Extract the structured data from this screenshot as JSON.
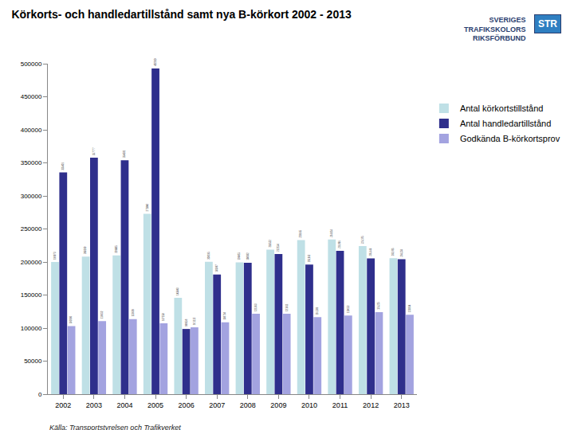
{
  "chart_data": {
    "type": "bar",
    "title": "Körkorts- och handledartillstånd samt nya B-körkort 2002 - 2013",
    "source": "Källa: Transportstyrelsen och Trafikverket",
    "logo": [
      "SVERIGES",
      "TRAFIKSKOLORS",
      "RIKSFÖRBUND",
      "STR"
    ],
    "categories": [
      "2002",
      "2003",
      "2004",
      "2005",
      "2006",
      "2007",
      "2008",
      "2009",
      "2010",
      "2011",
      "2012",
      "2013"
    ],
    "series": [
      {
        "name": "Antal körkortstillstånd",
        "color": "#bfe0e6",
        "values": [
          199973,
          208269,
          209885,
          272848,
          145843,
          200195,
          199415,
          218552,
          233045,
          234054,
          224175,
          205785
        ],
        "value_labels": [
          "199973",
          "208269",
          "209885",
          "272848",
          "145843",
          "200195",
          "199415",
          "218552",
          "233,045",
          "234,054",
          "224,175",
          "205,785"
        ]
      },
      {
        "name": "Antal handledartillstånd",
        "color": "#2f2f8c",
        "values": [
          335401,
          357777,
          354031,
          492919,
          98658,
          181067,
          198932,
          212154,
          195963,
          216996,
          205446,
          204234
        ],
        "value_labels": [
          "335401",
          "357777",
          "354031",
          "492919",
          "98658",
          "181067",
          "198932",
          "212154",
          "195,963",
          "216,996",
          "205,446",
          "204,234"
        ]
      },
      {
        "name": "Godkända B-körkortsprov",
        "color": "#a3a3e0",
        "values": [
          102996,
          110652,
          113699,
          107258,
          101115,
          108734,
          121563,
          121611,
          116586,
          119053,
          124225,
          120264
        ],
        "value_labels": [
          "102996",
          "110652",
          "113699",
          "107258",
          "101115",
          "108734",
          "121563",
          "121611",
          "116,586",
          "119053",
          "124,225",
          "120264"
        ]
      }
    ],
    "ylim": [
      0,
      500000
    ],
    "yticks": [
      0,
      50000,
      100000,
      150000,
      200000,
      250000,
      300000,
      350000,
      400000,
      450000,
      500000
    ],
    "grid": false,
    "legend": "right",
    "data_labels": true
  }
}
